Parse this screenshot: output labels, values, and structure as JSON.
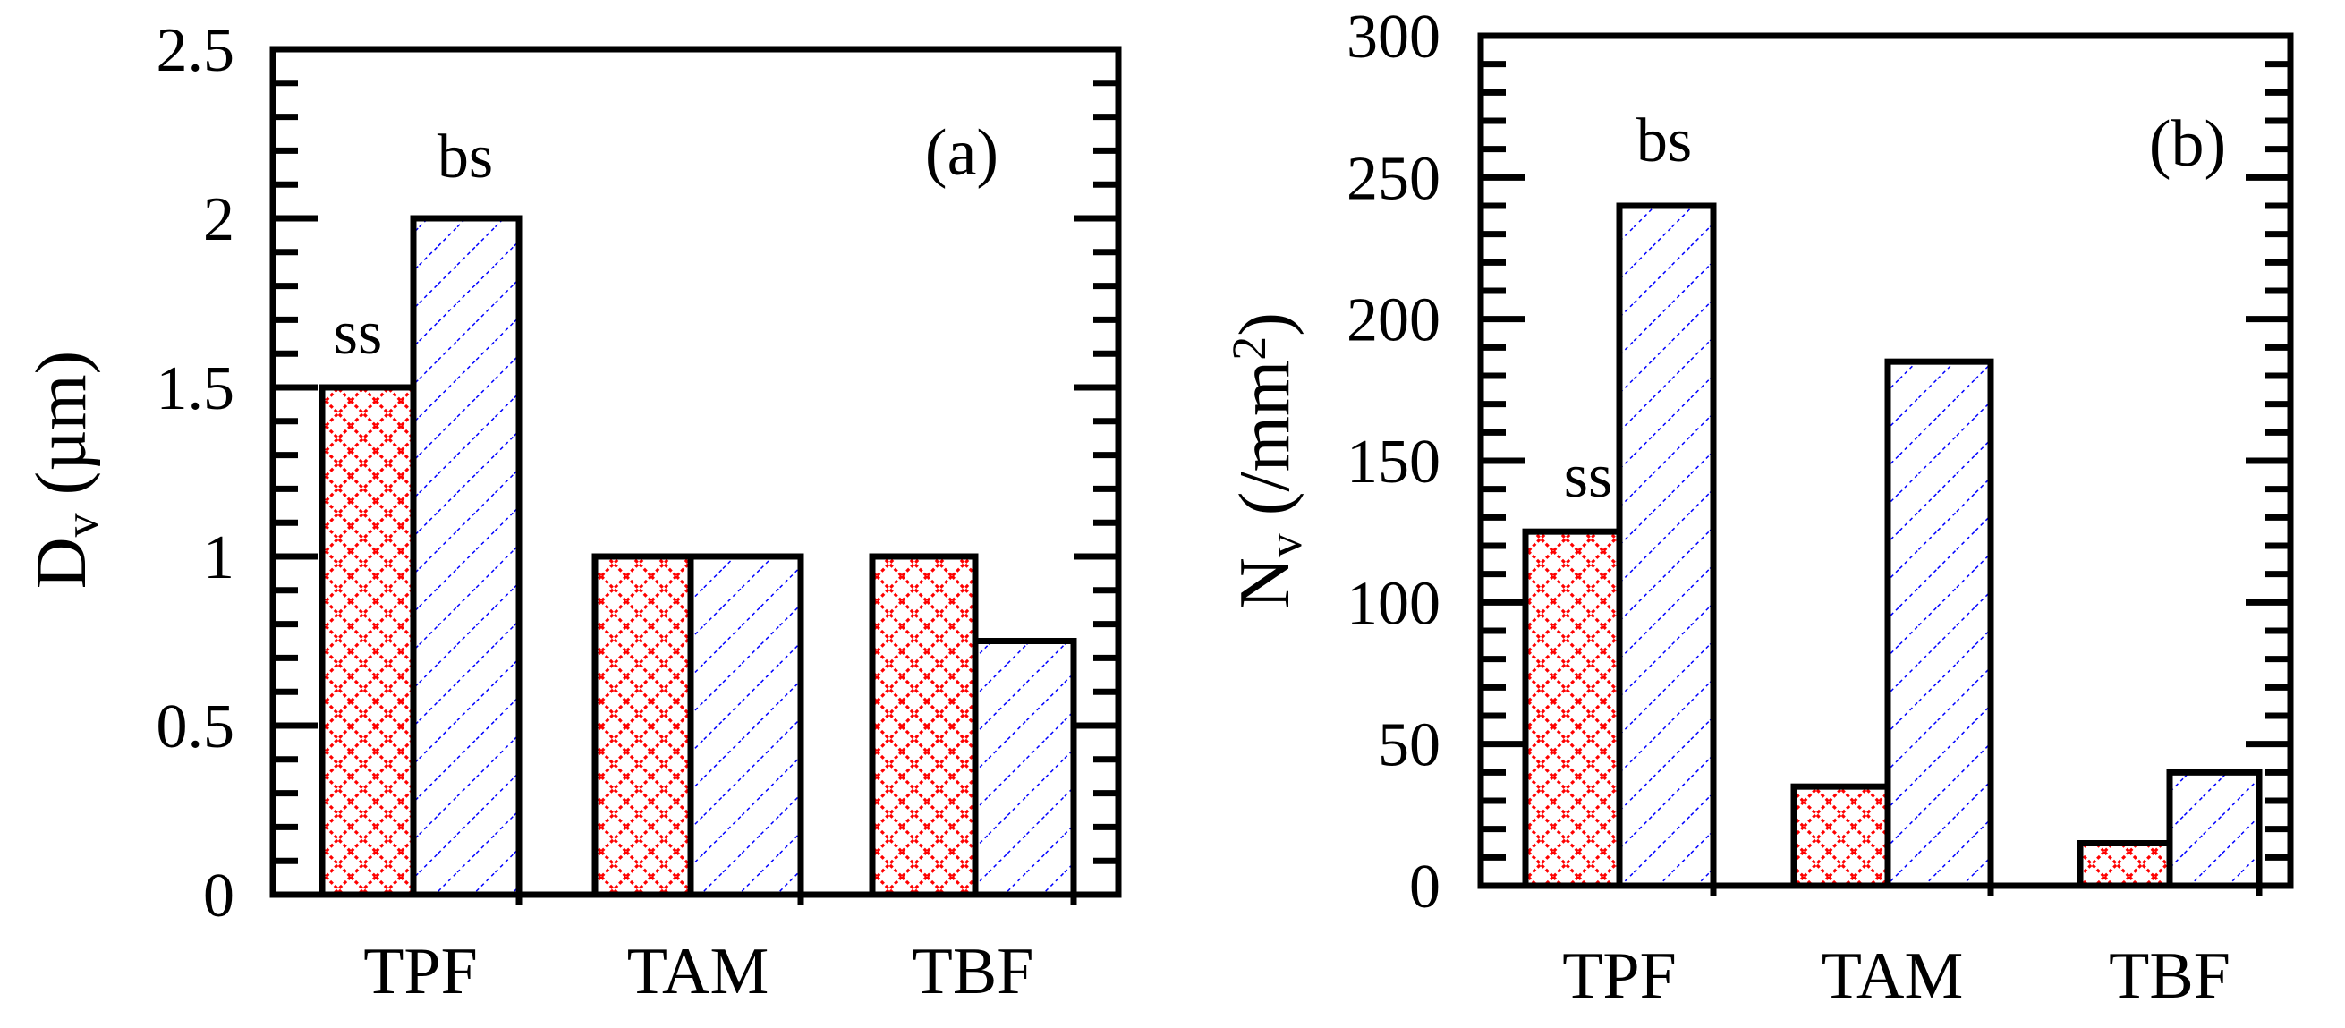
{
  "chart_data": [
    {
      "type": "bar",
      "panel": "(a)",
      "categories": [
        "TPF",
        "TAM",
        "TBF"
      ],
      "series": [
        {
          "name": "ss",
          "values": [
            1.5,
            1.0,
            1.0
          ]
        },
        {
          "name": "bs",
          "values": [
            2.0,
            1.0,
            0.75
          ]
        }
      ],
      "ylabel": {
        "main": "D",
        "sub": "v",
        "unit": "(µm)"
      },
      "ylim": [
        0,
        2.5
      ],
      "yticks": [
        "0",
        "0.5",
        "1",
        "1.5",
        "2",
        "2.5"
      ],
      "ytick_values": [
        0,
        0.5,
        1,
        1.5,
        2,
        2.5
      ],
      "minor_step": 0.1,
      "annotations": [
        {
          "text": "ss",
          "category": "TPF",
          "series": "ss"
        },
        {
          "text": "bs",
          "category": "TPF",
          "series": "bs"
        }
      ]
    },
    {
      "type": "bar",
      "panel": "(b)",
      "categories": [
        "TPF",
        "TAM",
        "TBF"
      ],
      "series": [
        {
          "name": "ss",
          "values": [
            125,
            35,
            15
          ]
        },
        {
          "name": "bs",
          "values": [
            240,
            185,
            40
          ]
        }
      ],
      "ylabel": {
        "main": "N",
        "sub": "v",
        "unit": "(/mm",
        "sup": "2",
        "close": ")"
      },
      "ylim": [
        0,
        300
      ],
      "yticks": [
        "0",
        "50",
        "100",
        "150",
        "200",
        "250",
        "300"
      ],
      "ytick_values": [
        0,
        50,
        100,
        150,
        200,
        250,
        300
      ],
      "minor_step": 10,
      "annotations": [
        {
          "text": "ss",
          "category": "TPF",
          "series": "ss"
        },
        {
          "text": "bs",
          "category": "TPF",
          "series": "bs"
        }
      ]
    }
  ],
  "colors": {
    "ss": "#ff0000",
    "bs": "#0000ff",
    "axis": "#000000"
  }
}
